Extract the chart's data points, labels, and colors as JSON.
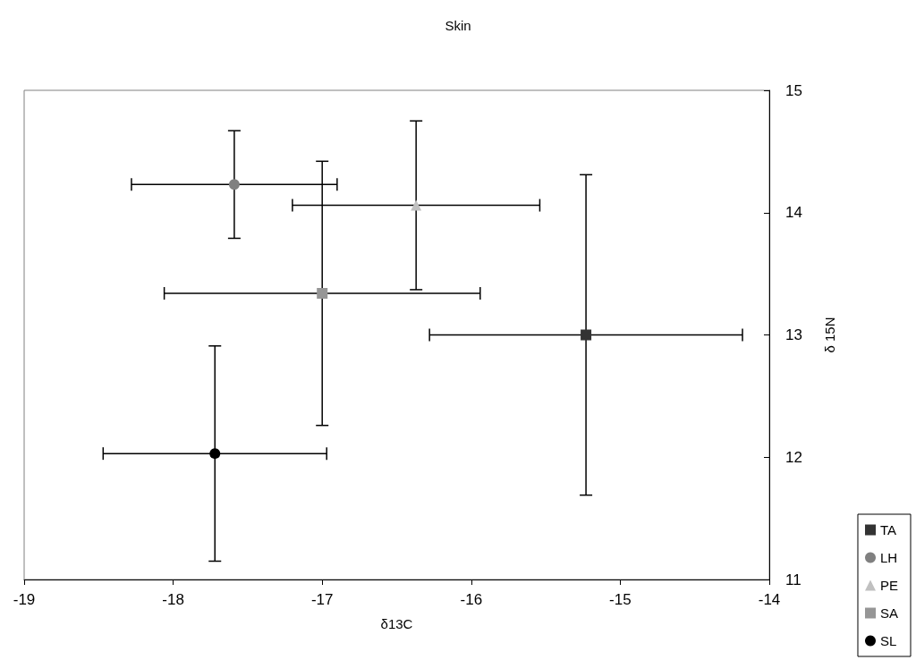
{
  "chart_data": {
    "type": "scatter",
    "title": "Skin",
    "xlabel": "δ13C",
    "ylabel": "δ 15N",
    "xlim": [
      -19,
      -14
    ],
    "xticks": [
      -19,
      -18,
      -17,
      -16,
      -15,
      -14
    ],
    "ylim": [
      11,
      15
    ],
    "yticks": [
      11,
      12,
      13,
      14,
      15
    ],
    "grid": false,
    "legend": "bottom right",
    "series": [
      {
        "name": "TA",
        "color": "#333333",
        "marker": "square",
        "x": [
          -15.23
        ],
        "values": [
          13.0
        ],
        "errors": [
          1.31
        ],
        "xerrors": [
          1.05
        ]
      },
      {
        "name": "LH",
        "color": "#808080",
        "marker": "circle",
        "x": [
          -17.59
        ],
        "values": [
          14.23
        ],
        "errors": [
          0.44
        ],
        "xerrors": [
          0.69
        ]
      },
      {
        "name": "PE",
        "color": "#c0c0c0",
        "marker": "triangle",
        "x": [
          -16.37
        ],
        "values": [
          14.06
        ],
        "errors": [
          0.69
        ],
        "xerrors": [
          0.83
        ]
      },
      {
        "name": "SA",
        "color": "#969696",
        "marker": "square",
        "x": [
          -17.0
        ],
        "values": [
          13.34
        ],
        "errors": [
          1.08
        ],
        "xerrors": [
          1.06
        ]
      },
      {
        "name": "SL",
        "color": "#000000",
        "marker": "circle",
        "x": [
          -17.72
        ],
        "values": [
          12.03
        ],
        "errors": [
          0.88
        ],
        "xerrors": [
          0.75
        ]
      }
    ]
  }
}
